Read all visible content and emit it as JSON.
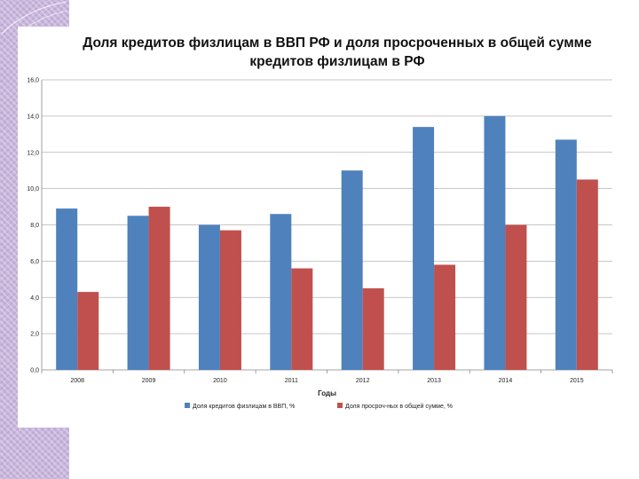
{
  "chart_data": {
    "type": "bar",
    "title": "Доля кредитов физлицам в ВВП РФ и доля просроченных в общей сумме кредитов физлицам в РФ",
    "title_lines": [
      "Доля кредитов физлицам в ВВП РФ и доля просроченных в общей сумме",
      "кредитов физлицам в РФ"
    ],
    "xlabel": "Годы",
    "ylabel": "",
    "ylim": [
      0,
      16
    ],
    "y_ticks": [
      "0,0",
      "2,0",
      "4,0",
      "6,0",
      "8,0",
      "10,0",
      "12,0",
      "14,0",
      "16,0"
    ],
    "categories": [
      "2008",
      "2009",
      "2010",
      "2011",
      "2012",
      "2013",
      "2014",
      "2015"
    ],
    "series": [
      {
        "name": "Доля кредитов физлицам в ВВП, %",
        "color": "#4f81bd",
        "values": [
          8.9,
          8.5,
          8.0,
          8.6,
          11.0,
          13.4,
          14.0,
          12.7
        ]
      },
      {
        "name": "Доля просроч-ных в общей сумме, %",
        "color": "#c0504d",
        "values": [
          4.3,
          9.0,
          7.7,
          5.6,
          4.5,
          5.8,
          8.0,
          10.5
        ]
      }
    ],
    "grid": true,
    "legend_position": "bottom"
  }
}
